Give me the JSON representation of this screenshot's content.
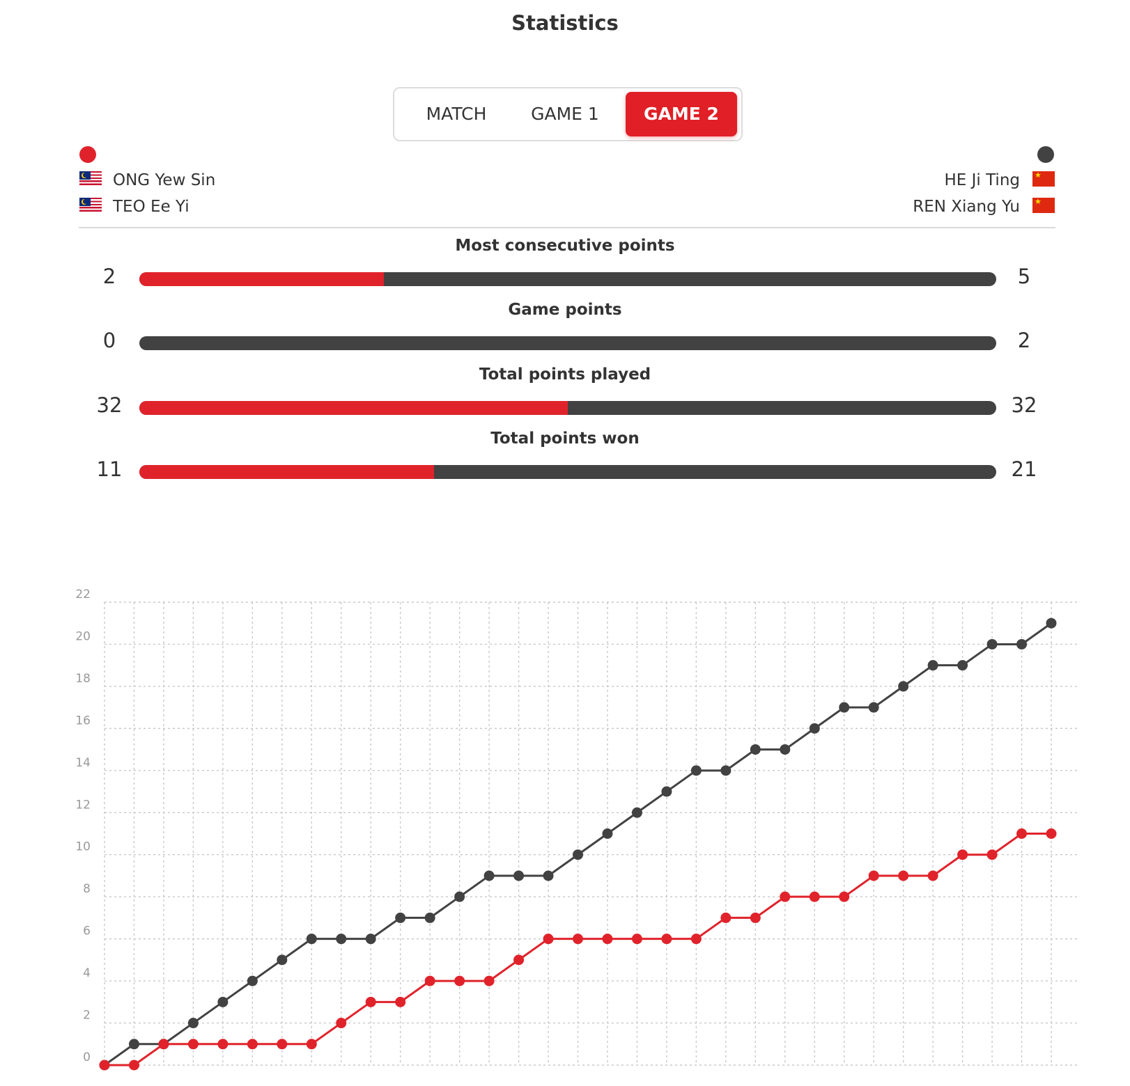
{
  "title": "Statistics",
  "tabs": [
    {
      "label": "MATCH",
      "active": false
    },
    {
      "label": "GAME 1",
      "active": false
    },
    {
      "label": "GAME 2",
      "active": true
    }
  ],
  "colors": {
    "team_left": "#e0232b",
    "team_right": "#424242",
    "accent": "#e01f26"
  },
  "team_left": {
    "players": [
      {
        "name": "ONG Yew Sin",
        "flag": "malaysia-flag-icon"
      },
      {
        "name": "TEO Ee Yi",
        "flag": "malaysia-flag-icon"
      }
    ]
  },
  "team_right": {
    "players": [
      {
        "name": "HE Ji Ting",
        "flag": "china-flag-icon"
      },
      {
        "name": "REN Xiang Yu",
        "flag": "china-flag-icon"
      }
    ]
  },
  "stats": [
    {
      "label": "Most consecutive points",
      "left": "2",
      "right": "5",
      "left_share": 0.2857
    },
    {
      "label": "Game points",
      "left": "0",
      "right": "2",
      "left_share": 0.0
    },
    {
      "label": "Total points played",
      "left": "32",
      "right": "32",
      "left_share": 0.5
    },
    {
      "label": "Total points won",
      "left": "11",
      "right": "21",
      "left_share": 0.3438
    }
  ],
  "chart_data": {
    "type": "line",
    "title": "",
    "xlabel": "",
    "ylabel": "",
    "ylim": [
      0,
      22
    ],
    "yticks": [
      0,
      2,
      4,
      6,
      8,
      10,
      12,
      14,
      16,
      18,
      20,
      22
    ],
    "x": [
      0,
      1,
      2,
      3,
      4,
      5,
      6,
      7,
      8,
      9,
      10,
      11,
      12,
      13,
      14,
      15,
      16,
      17,
      18,
      19,
      20,
      21,
      22,
      23,
      24,
      25,
      26,
      27,
      28,
      29,
      30,
      31,
      32
    ],
    "grid": true,
    "series": [
      {
        "color": "#424242",
        "values": [
          0,
          1,
          1,
          2,
          3,
          4,
          5,
          6,
          6,
          6,
          7,
          7,
          8,
          9,
          9,
          9,
          10,
          11,
          12,
          13,
          14,
          14,
          15,
          15,
          16,
          17,
          17,
          18,
          19,
          19,
          20,
          20,
          21
        ]
      },
      {
        "color": "#e0232b",
        "values": [
          0,
          0,
          1,
          1,
          1,
          1,
          1,
          1,
          2,
          3,
          3,
          4,
          4,
          4,
          5,
          6,
          6,
          6,
          6,
          6,
          6,
          7,
          7,
          8,
          8,
          8,
          9,
          9,
          9,
          10,
          10,
          11,
          11
        ]
      }
    ]
  }
}
